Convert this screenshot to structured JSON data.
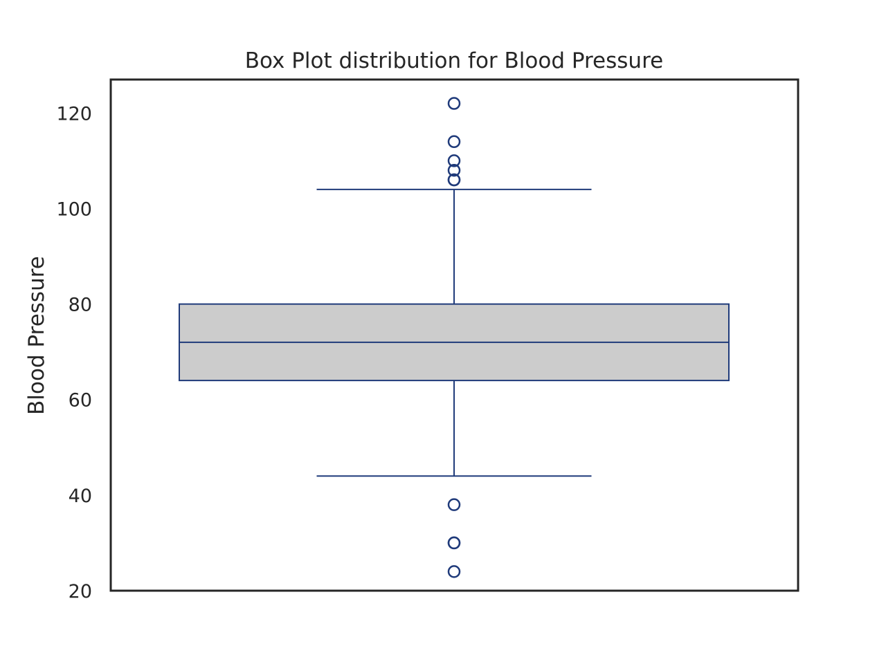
{
  "chart_data": {
    "type": "box",
    "title": "Box Plot distribution for Blood Pressure",
    "xlabel": "",
    "ylabel": "Blood Pressure",
    "ylim": [
      20,
      127
    ],
    "yticks": [
      20,
      40,
      60,
      80,
      100,
      120
    ],
    "grid": false,
    "legend": "none",
    "box": {
      "whisker_low": 44,
      "q1": 64,
      "median": 72,
      "q3": 80,
      "whisker_high": 104
    },
    "outliers": [
      122,
      114,
      110,
      108,
      106,
      106,
      38,
      30,
      30,
      24
    ],
    "colors": {
      "box_fill": "#cccccc",
      "line": "#1f3a7a",
      "frame": "#262626",
      "text": "#262626"
    }
  }
}
